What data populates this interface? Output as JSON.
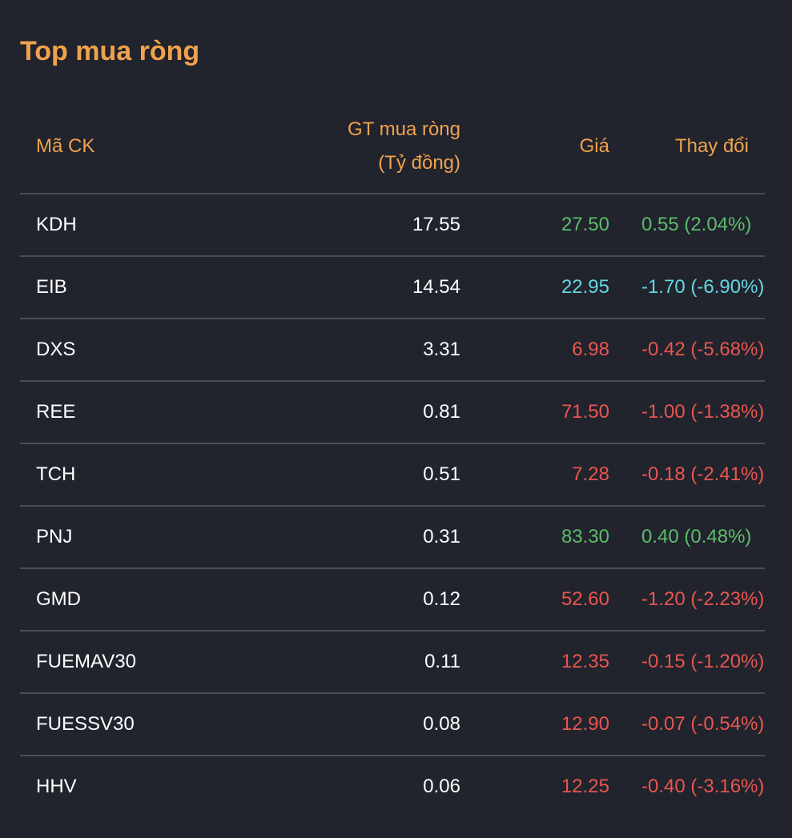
{
  "title": "Top mua ròng",
  "headers": {
    "code": "Mã CK",
    "value_line1": "GT mua ròng",
    "value_line2": "(Tỷ đồng)",
    "price": "Giá",
    "change": "Thay đổi"
  },
  "colors": {
    "up": "#5cbd6b",
    "down": "#e8574f",
    "floor": "#63d7e2",
    "accent": "#f0a24c"
  },
  "rows": [
    {
      "code": "KDH",
      "value": "17.55",
      "price": "27.50",
      "change": "0.55 (2.04%)",
      "trend": "up"
    },
    {
      "code": "EIB",
      "value": "14.54",
      "price": "22.95",
      "change": "-1.70 (-6.90%)",
      "trend": "floor"
    },
    {
      "code": "DXS",
      "value": "3.31",
      "price": "6.98",
      "change": "-0.42 (-5.68%)",
      "trend": "down"
    },
    {
      "code": "REE",
      "value": "0.81",
      "price": "71.50",
      "change": "-1.00 (-1.38%)",
      "trend": "down"
    },
    {
      "code": "TCH",
      "value": "0.51",
      "price": "7.28",
      "change": "-0.18 (-2.41%)",
      "trend": "down"
    },
    {
      "code": "PNJ",
      "value": "0.31",
      "price": "83.30",
      "change": "0.40 (0.48%)",
      "trend": "up"
    },
    {
      "code": "GMD",
      "value": "0.12",
      "price": "52.60",
      "change": "-1.20 (-2.23%)",
      "trend": "down"
    },
    {
      "code": "FUEMAV30",
      "value": "0.11",
      "price": "12.35",
      "change": "-0.15 (-1.20%)",
      "trend": "down"
    },
    {
      "code": "FUESSV30",
      "value": "0.08",
      "price": "12.90",
      "change": "-0.07 (-0.54%)",
      "trend": "down"
    },
    {
      "code": "HHV",
      "value": "0.06",
      "price": "12.25",
      "change": "-0.40 (-3.16%)",
      "trend": "down"
    }
  ]
}
